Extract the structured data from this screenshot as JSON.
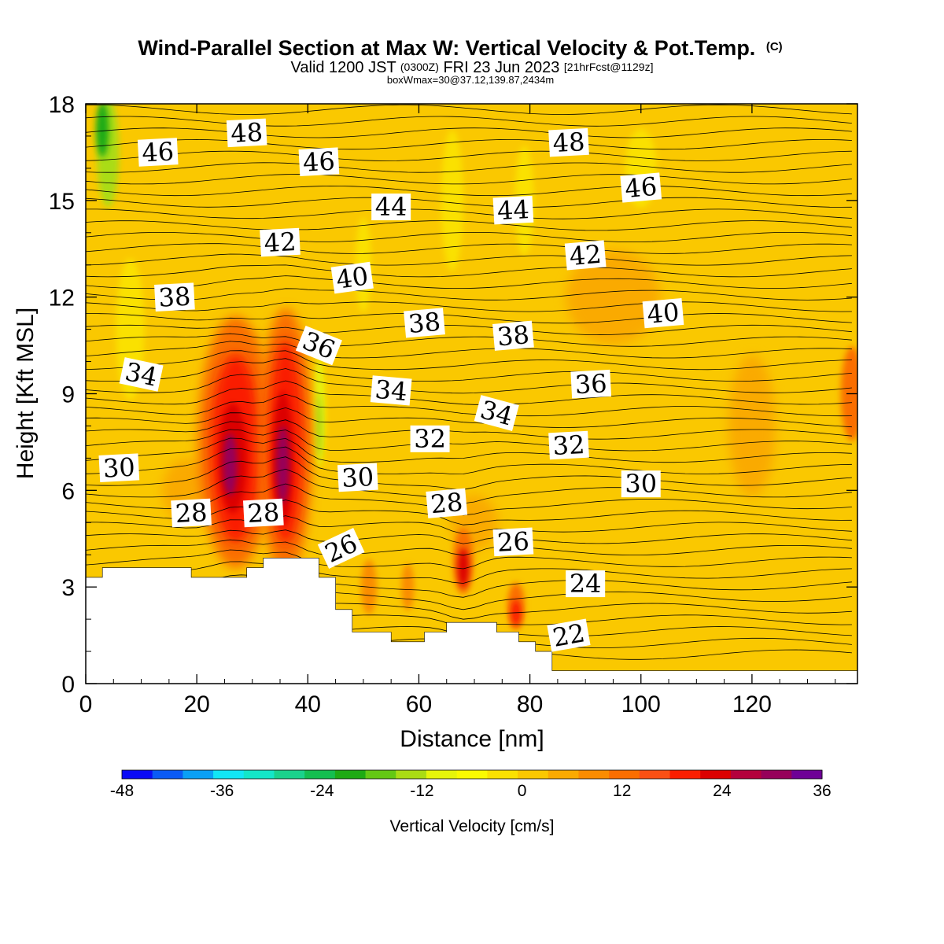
{
  "chart_data": {
    "type": "heatmap",
    "title_main": "Wind-Parallel Section at Max W: Vertical Velocity & Pot.Temp.",
    "title_mark": "(C)",
    "subtitle_parts": {
      "a": "Valid 1200 JST",
      "b": "(0300Z)",
      "c": "FRI 23 Jun 2023",
      "d": "[21hrFcst@1129z]"
    },
    "subtitle2": "boxWmax=30@37.12,139.87,2434m",
    "xlabel": "Distance [nm]",
    "ylabel": "Height [Kft MSL]",
    "xlim": [
      0,
      139
    ],
    "ylim": [
      0,
      18
    ],
    "x_ticks": [
      "0",
      "20",
      "40",
      "60",
      "80",
      "100",
      "120"
    ],
    "y_ticks": [
      "0",
      "3",
      "6",
      "9",
      "12",
      "15",
      "18"
    ],
    "colorbar": {
      "label": "Vertical Velocity [cm/s]",
      "min": -48,
      "max": 36,
      "tick_labels": [
        "-48",
        "-36",
        "-24",
        "-12",
        "0",
        "12",
        "24",
        "36"
      ],
      "colors": [
        "#0a0af5",
        "#0a5af5",
        "#0aa0f5",
        "#12e6f5",
        "#14e6c8",
        "#1ad28c",
        "#14be50",
        "#1eaa14",
        "#64c814",
        "#aadc14",
        "#e6f50a",
        "#fafa00",
        "#fae100",
        "#fac800",
        "#faaa00",
        "#fa8c00",
        "#fa6e00",
        "#fa5014",
        "#fa1e00",
        "#dc0000",
        "#b4003c",
        "#96005a",
        "#6e0096"
      ]
    },
    "terrain_kft": [
      [
        0,
        3.3
      ],
      [
        3,
        3.3
      ],
      [
        3,
        3.6
      ],
      [
        19,
        3.6
      ],
      [
        19,
        3.3
      ],
      [
        29,
        3.3
      ],
      [
        29,
        3.6
      ],
      [
        32,
        3.6
      ],
      [
        32,
        3.9
      ],
      [
        42,
        3.9
      ],
      [
        42,
        3.3
      ],
      [
        45,
        3.3
      ],
      [
        45,
        2.3
      ],
      [
        48,
        2.3
      ],
      [
        48,
        1.6
      ],
      [
        55,
        1.6
      ],
      [
        55,
        1.3
      ],
      [
        61,
        1.3
      ],
      [
        61,
        1.6
      ],
      [
        65,
        1.6
      ],
      [
        65,
        1.9
      ],
      [
        74,
        1.9
      ],
      [
        74,
        1.6
      ],
      [
        78,
        1.6
      ],
      [
        78,
        1.3
      ],
      [
        81,
        1.3
      ],
      [
        81,
        1.0
      ],
      [
        84,
        1.0
      ],
      [
        84,
        0.4
      ],
      [
        139,
        0.4
      ]
    ],
    "theta_labels": [
      {
        "value": "48",
        "x": 29,
        "y": 17.1,
        "rot": -3
      },
      {
        "value": "46",
        "x": 13,
        "y": 16.5,
        "rot": -3
      },
      {
        "value": "46",
        "x": 42,
        "y": 16.2,
        "rot": -3
      },
      {
        "value": "44",
        "x": 55,
        "y": 14.8,
        "rot": 0
      },
      {
        "value": "44",
        "x": 77,
        "y": 14.7,
        "rot": -3
      },
      {
        "value": "48",
        "x": 87,
        "y": 16.8,
        "rot": -3
      },
      {
        "value": "46",
        "x": 100,
        "y": 15.4,
        "rot": -5
      },
      {
        "value": "42",
        "x": 35,
        "y": 13.7,
        "rot": -3
      },
      {
        "value": "42",
        "x": 90,
        "y": 13.3,
        "rot": -5
      },
      {
        "value": "40",
        "x": 48,
        "y": 12.6,
        "rot": -8
      },
      {
        "value": "40",
        "x": 104,
        "y": 11.5,
        "rot": -5
      },
      {
        "value": "38",
        "x": 16,
        "y": 12.0,
        "rot": -3
      },
      {
        "value": "38",
        "x": 61,
        "y": 11.2,
        "rot": -5
      },
      {
        "value": "38",
        "x": 77,
        "y": 10.8,
        "rot": -5
      },
      {
        "value": "36",
        "x": 42,
        "y": 10.5,
        "rot": 22
      },
      {
        "value": "36",
        "x": 91,
        "y": 9.3,
        "rot": -3
      },
      {
        "value": "34",
        "x": 10,
        "y": 9.6,
        "rot": 12
      },
      {
        "value": "34",
        "x": 55,
        "y": 9.1,
        "rot": 5
      },
      {
        "value": "34",
        "x": 74,
        "y": 8.4,
        "rot": 15
      },
      {
        "value": "32",
        "x": 62,
        "y": 7.6,
        "rot": 0
      },
      {
        "value": "32",
        "x": 87,
        "y": 7.4,
        "rot": -3
      },
      {
        "value": "30",
        "x": 6,
        "y": 6.7,
        "rot": -3
      },
      {
        "value": "30",
        "x": 49,
        "y": 6.4,
        "rot": -3
      },
      {
        "value": "30",
        "x": 100,
        "y": 6.2,
        "rot": 0
      },
      {
        "value": "28",
        "x": 19,
        "y": 5.3,
        "rot": -3
      },
      {
        "value": "28",
        "x": 32,
        "y": 5.3,
        "rot": -3
      },
      {
        "value": "28",
        "x": 65,
        "y": 5.6,
        "rot": -5
      },
      {
        "value": "26",
        "x": 46,
        "y": 4.2,
        "rot": -25
      },
      {
        "value": "26",
        "x": 77,
        "y": 4.4,
        "rot": -3
      },
      {
        "value": "24",
        "x": 90,
        "y": 3.1,
        "rot": 0
      },
      {
        "value": "22",
        "x": 87,
        "y": 1.5,
        "rot": -10
      }
    ]
  }
}
